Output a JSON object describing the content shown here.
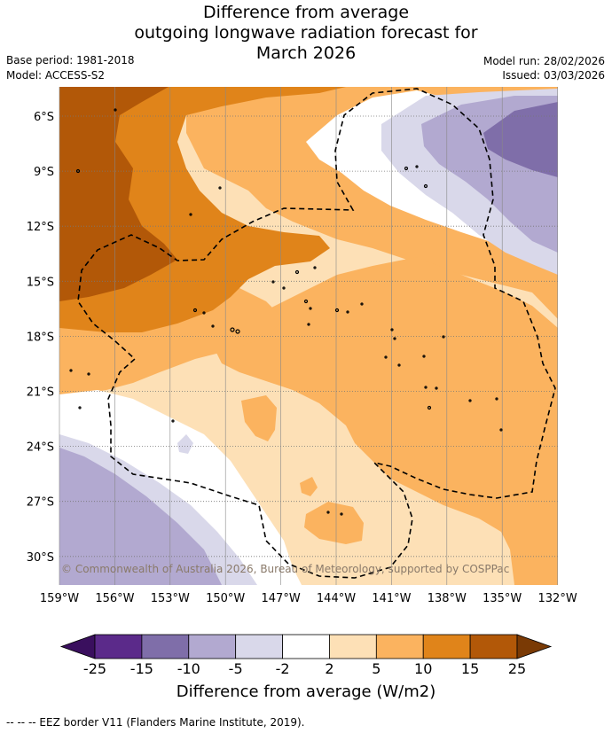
{
  "title": {
    "line1": "Difference from average",
    "line2": "outgoing longwave radiation forecast for",
    "line3": "March 2026"
  },
  "meta": {
    "base_period": "Base period: 1981-2018",
    "model": "Model: ACCESS-S2",
    "model_run": "Model run: 28/02/2026",
    "issued": "Issued: 03/03/2026"
  },
  "axes": {
    "lat_labels": [
      "6°S",
      "9°S",
      "12°S",
      "15°S",
      "18°S",
      "21°S",
      "24°S",
      "27°S",
      "30°S"
    ],
    "lon_labels": [
      "159°W",
      "156°W",
      "153°W",
      "150°W",
      "147°W",
      "144°W",
      "141°W",
      "138°W",
      "135°W",
      "132°W"
    ]
  },
  "copyright": "© Commonwealth of Australia 2026, Bureau of Meteorology, supported by COSPPac",
  "colorbar": {
    "labels": [
      "-25",
      "-15",
      "-10",
      "-5",
      "-2",
      "2",
      "5",
      "10",
      "15",
      "25"
    ],
    "title": "Difference from average (W/m2)",
    "colors": [
      "#3a0f5e",
      "#5b2a8a",
      "#7f6ea9",
      "#b2a9d0",
      "#d9d8ea",
      "#ffffff",
      "#fde0b6",
      "#fbb35f",
      "#e0841a",
      "#b25808",
      "#7a3a05"
    ]
  },
  "footer": "--  --  -- EEZ border V11 (Flanders Marine Institute, 2019)."
}
